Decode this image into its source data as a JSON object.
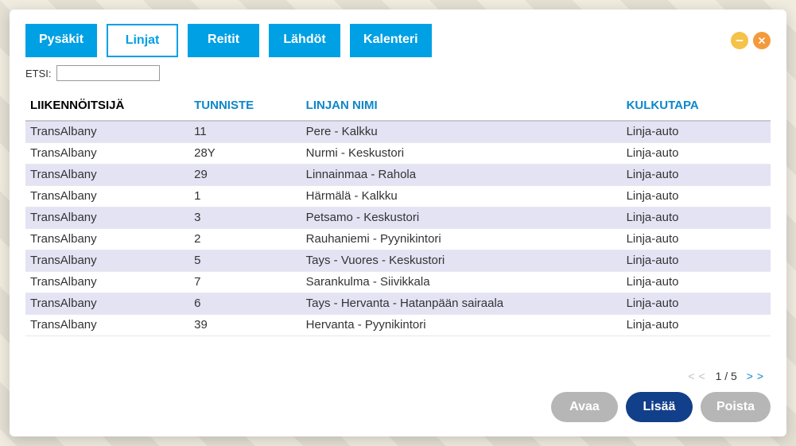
{
  "tabs": {
    "items": [
      {
        "label": "Pysäkit",
        "active": false
      },
      {
        "label": "Linjat",
        "active": true
      },
      {
        "label": "Reitit",
        "active": false
      },
      {
        "label": "Lähdöt",
        "active": false
      },
      {
        "label": "Kalenteri",
        "active": false
      }
    ]
  },
  "search": {
    "label": "ETSI:",
    "value": ""
  },
  "table": {
    "columns": [
      {
        "label": "LIIKENNÖITSIJÄ",
        "sorted": true
      },
      {
        "label": "TUNNISTE",
        "sorted": false
      },
      {
        "label": "LINJAN NIMI",
        "sorted": false
      },
      {
        "label": "KULKUTAPA",
        "sorted": false
      }
    ],
    "col_widths": [
      "22%",
      "15%",
      "43%",
      "20%"
    ],
    "rows": [
      [
        "TransAlbany",
        "11",
        "Pere - Kalkku",
        "Linja-auto"
      ],
      [
        "TransAlbany",
        "28Y",
        "Nurmi - Keskustori",
        "Linja-auto"
      ],
      [
        "TransAlbany",
        "29",
        "Linnainmaa - Rahola",
        "Linja-auto"
      ],
      [
        "TransAlbany",
        "1",
        "Härmälä - Kalkku",
        "Linja-auto"
      ],
      [
        "TransAlbany",
        "3",
        "Petsamo - Keskustori",
        "Linja-auto"
      ],
      [
        "TransAlbany",
        "2",
        "Rauhaniemi - Pyynikintori",
        "Linja-auto"
      ],
      [
        "TransAlbany",
        "5",
        "Tays - Vuores - Keskustori",
        "Linja-auto"
      ],
      [
        "TransAlbany",
        "7",
        "Sarankulma - Siivikkala",
        "Linja-auto"
      ],
      [
        "TransAlbany",
        "6",
        "Tays - Hervanta - Hatanpään sairaala",
        "Linja-auto"
      ],
      [
        "TransAlbany",
        "39",
        "Hervanta - Pyynikintori",
        "Linja-auto"
      ]
    ]
  },
  "pager": {
    "current": 1,
    "total": 5
  },
  "actions": {
    "open": {
      "label": "Avaa",
      "enabled": false
    },
    "add": {
      "label": "Lisää",
      "enabled": true
    },
    "remove": {
      "label": "Poista",
      "enabled": false
    }
  },
  "colors": {
    "accent": "#00a0e4",
    "primary_btn": "#123f8a",
    "disabled_btn": "#b6b6b6",
    "row_even": "#e3e3f4",
    "row_odd": "#ffffff",
    "link": "#0d87c9"
  }
}
